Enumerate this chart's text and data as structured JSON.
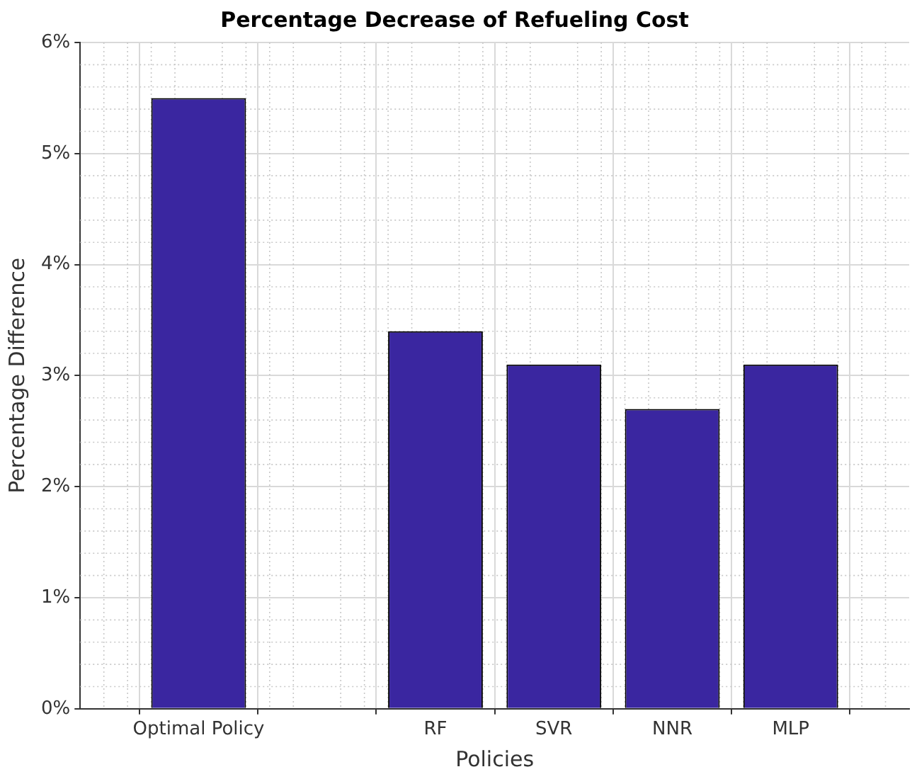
{
  "chart_data": {
    "type": "bar",
    "title": "Percentage Decrease of Refueling Cost",
    "xlabel": "Policies",
    "ylabel": "Percentage Difference",
    "categories": [
      "Optimal Policy",
      null,
      "RF",
      "SVR",
      "NNR",
      "MLP"
    ],
    "values": [
      5.5,
      null,
      3.4,
      3.1,
      2.7,
      3.1
    ],
    "color": "#3a26a0",
    "ylim": [
      0,
      6
    ],
    "yticks": [
      {
        "value": 0,
        "label": "0%"
      },
      {
        "value": 1,
        "label": "1%"
      },
      {
        "value": 2,
        "label": "2%"
      },
      {
        "value": 3,
        "label": "3%"
      },
      {
        "value": 4,
        "label": "4%"
      },
      {
        "value": 5,
        "label": "5%"
      },
      {
        "value": 6,
        "label": "6%"
      }
    ],
    "grid": true
  }
}
